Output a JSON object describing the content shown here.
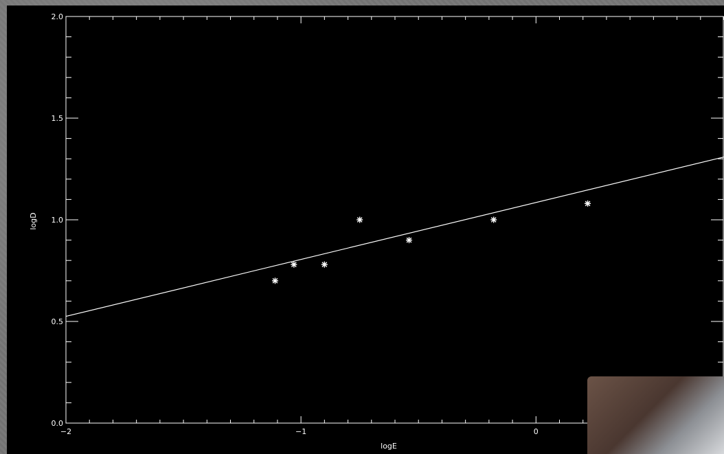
{
  "chart_data": {
    "type": "scatter",
    "title": "",
    "xlabel": "logE",
    "ylabel": "logD",
    "xlim": [
      -2,
      0.8
    ],
    "ylim": [
      0.0,
      2.0
    ],
    "x_ticks": [
      {
        "value": -2,
        "label": "−2"
      },
      {
        "value": -1,
        "label": "−1"
      },
      {
        "value": 0,
        "label": "0"
      }
    ],
    "y_ticks": [
      {
        "value": 0.0,
        "label": "0.0"
      },
      {
        "value": 0.5,
        "label": "0.5"
      },
      {
        "value": 1.0,
        "label": "1.0"
      },
      {
        "value": 1.5,
        "label": "1.5"
      },
      {
        "value": 2.0,
        "label": "2.0"
      }
    ],
    "points": [
      {
        "x": -1.11,
        "y": 0.7
      },
      {
        "x": -1.03,
        "y": 0.78
      },
      {
        "x": -0.9,
        "y": 0.78
      },
      {
        "x": -0.75,
        "y": 1.0
      },
      {
        "x": -0.54,
        "y": 0.9
      },
      {
        "x": -0.18,
        "y": 1.0
      },
      {
        "x": 0.22,
        "y": 1.08
      }
    ],
    "fit_line": {
      "slope": 0.28,
      "intercept": 1.085
    },
    "colors": {
      "background": "#000000",
      "foreground": "#ffffff"
    },
    "grid": false,
    "marker": "asterisk"
  }
}
